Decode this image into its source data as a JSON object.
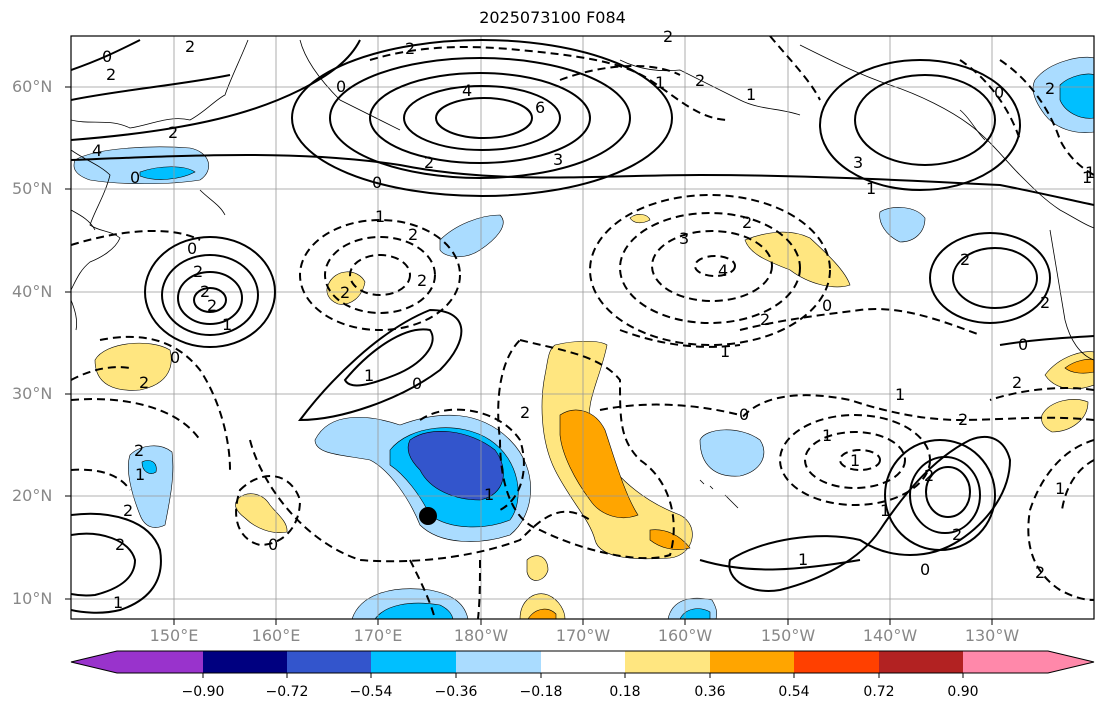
{
  "title": "2025073100 F084",
  "lat_labels": [
    "60°N",
    "50°N",
    "40°N",
    "30°N",
    "20°N",
    "10°N"
  ],
  "lon_labels": [
    "150°E",
    "160°E",
    "170°E",
    "180°W",
    "170°W",
    "160°W",
    "150°W",
    "140°W",
    "130°W"
  ],
  "colorbar": {
    "labels": [
      "−0.90",
      "−0.72",
      "−0.54",
      "−0.36",
      "−0.18",
      "0.18",
      "0.36",
      "0.54",
      "0.72",
      "0.90"
    ],
    "colors": [
      "#9933cc",
      "#000080",
      "#3355cc",
      "#00bfff",
      "#aadcff",
      "#ffffff",
      "#ffe680",
      "#ffa500",
      "#ff4000",
      "#b22222",
      "#ff88aa"
    ]
  },
  "fill_colors": {
    "light_blue": "#aadcff",
    "blue": "#00bfff",
    "dark_blue": "#3355cc",
    "yellow": "#ffe680",
    "orange": "#ffa500"
  },
  "contour_labels": [
    "0",
    "2",
    "2",
    "2",
    "0",
    "4",
    "6",
    "2",
    "3",
    "0",
    "2",
    "3",
    "1",
    "4",
    "2",
    "0",
    "1",
    "2",
    "2",
    "0",
    "2",
    "2",
    "1",
    "2",
    "1",
    "0",
    "2",
    "1",
    "0",
    "2",
    "0",
    "2",
    "3",
    "4",
    "2",
    "0",
    "1",
    "2",
    "0",
    "2",
    "0",
    "1",
    "2",
    "2",
    "2",
    "1",
    "1",
    "1",
    "2",
    "0",
    "1",
    "2",
    "1",
    "1",
    "2",
    "2",
    "2",
    "2",
    "1",
    "1",
    "0",
    "2",
    "2",
    "1",
    "1",
    "1"
  ],
  "marker": "storm-position"
}
